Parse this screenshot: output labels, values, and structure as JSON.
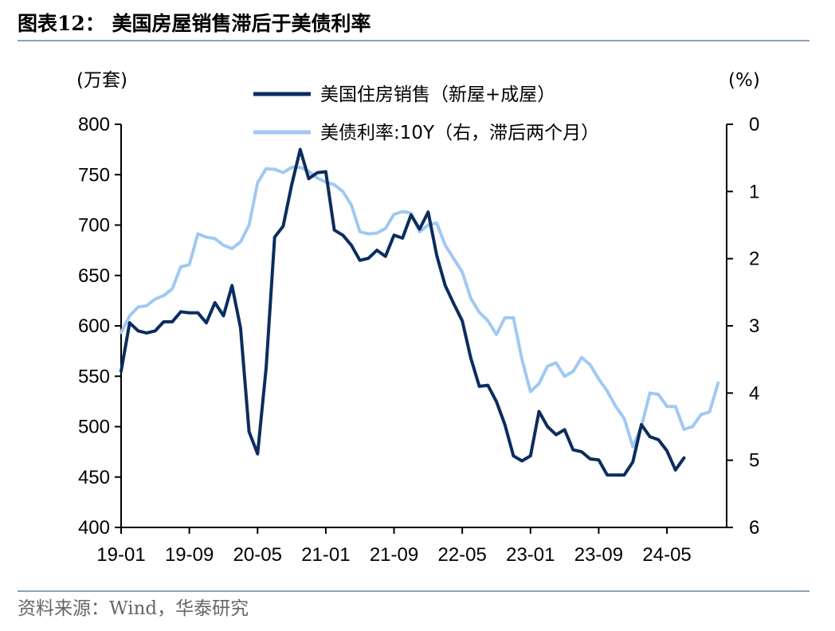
{
  "header": {
    "title": "图表12： 美国房屋销售滞后于美债利率"
  },
  "footer": {
    "source": "资料来源：Wind，华泰研究"
  },
  "colors": {
    "sales": "#0b2d5e",
    "yield": "#a0c9f2",
    "axis": "#000000",
    "rule": "#8aa2b8"
  },
  "chart_data": {
    "type": "line",
    "yunit_left": "(万套)",
    "yunit_right": "(%)",
    "ylim_left": [
      400,
      800
    ],
    "ylim_right": [
      6,
      0
    ],
    "right_axis_inverted": true,
    "yticks_left": [
      "400",
      "450",
      "500",
      "550",
      "600",
      "650",
      "700",
      "750",
      "800"
    ],
    "yticks_right": [
      "0",
      "1",
      "2",
      "3",
      "4",
      "5",
      "6"
    ],
    "xticks": [
      "19-01",
      "19-09",
      "20-05",
      "21-01",
      "21-09",
      "22-05",
      "23-01",
      "23-09",
      "24-05"
    ],
    "x": [
      "19-01",
      "19-02",
      "19-03",
      "19-04",
      "19-05",
      "19-06",
      "19-07",
      "19-08",
      "19-09",
      "19-10",
      "19-11",
      "19-12",
      "20-01",
      "20-02",
      "20-03",
      "20-04",
      "20-05",
      "20-06",
      "20-07",
      "20-08",
      "20-09",
      "20-10",
      "20-11",
      "20-12",
      "21-01",
      "21-02",
      "21-03",
      "21-04",
      "21-05",
      "21-06",
      "21-07",
      "21-08",
      "21-09",
      "21-10",
      "21-11",
      "21-12",
      "22-01",
      "22-02",
      "22-03",
      "22-04",
      "22-05",
      "22-06",
      "22-07",
      "22-08",
      "22-09",
      "22-10",
      "22-11",
      "22-12",
      "23-01",
      "23-02",
      "23-03",
      "23-04",
      "23-05",
      "23-06",
      "23-07",
      "23-08",
      "23-09",
      "23-10",
      "23-11",
      "23-12",
      "24-01",
      "24-02",
      "24-03",
      "24-04",
      "24-05",
      "24-06",
      "24-07",
      "24-08",
      "24-09",
      "24-10",
      "24-11",
      "24-12"
    ],
    "legend_position": "top-center",
    "grid": false,
    "series": [
      {
        "name": "美国住房销售（新屋+成屋）",
        "axis": "left",
        "values": [
          555,
          603,
          595,
          593,
          595,
          604,
          604,
          614,
          613,
          613,
          603,
          623,
          610,
          640,
          598,
          495,
          473,
          558,
          688,
          699,
          740,
          775,
          746,
          752,
          753,
          695,
          690,
          680,
          665,
          667,
          675,
          669,
          690,
          687,
          710,
          696,
          713,
          670,
          640,
          622,
          605,
          568,
          540,
          541,
          525,
          502,
          471,
          466,
          471,
          515,
          500,
          492,
          497,
          477,
          475,
          468,
          467,
          452,
          452,
          452,
          465,
          502,
          490,
          487,
          476,
          457,
          469,
          null,
          null,
          null,
          null,
          null
        ]
      },
      {
        "name": "美债利率:10Y（右，滞后两个月）",
        "axis": "right",
        "values": [
          3.1,
          2.85,
          2.72,
          2.7,
          2.6,
          2.55,
          2.45,
          2.12,
          2.09,
          1.63,
          1.68,
          1.7,
          1.8,
          1.85,
          1.75,
          1.5,
          0.87,
          0.66,
          0.67,
          0.72,
          0.64,
          0.64,
          0.7,
          0.8,
          0.86,
          0.9,
          1.0,
          1.2,
          1.6,
          1.63,
          1.62,
          1.55,
          1.34,
          1.3,
          1.32,
          1.6,
          1.5,
          1.47,
          1.8,
          2.0,
          2.2,
          2.59,
          2.8,
          2.92,
          3.13,
          2.88,
          2.88,
          3.5,
          3.98,
          3.86,
          3.6,
          3.55,
          3.75,
          3.68,
          3.47,
          3.58,
          3.79,
          3.97,
          4.2,
          4.38,
          4.8,
          4.5,
          4.0,
          4.02,
          4.2,
          4.2,
          4.54,
          4.5,
          4.32,
          4.28,
          3.85,
          null
        ]
      }
    ]
  }
}
